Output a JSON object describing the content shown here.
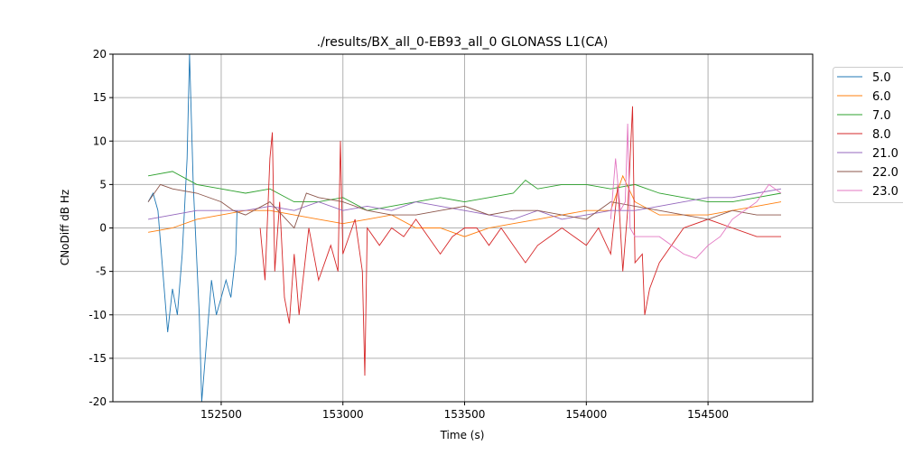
{
  "chart_data": {
    "type": "line",
    "title": "./results/BX_all_0-EB93_all_0 GLONASS L1(CA)",
    "xlabel": "Time (s)",
    "ylabel": "CNoDiff dB Hz",
    "xlim": [
      152055,
      154930
    ],
    "ylim": [
      -20,
      20
    ],
    "xticks": [
      152500,
      153000,
      153500,
      154000,
      154500
    ],
    "yticks": [
      -20,
      -15,
      -10,
      -5,
      0,
      5,
      10,
      15,
      20
    ],
    "grid": true,
    "legend_position": "outside-right-top",
    "series": [
      {
        "name": "5.0",
        "color": "#1f77b4",
        "points": [
          [
            152200,
            3
          ],
          [
            152220,
            4
          ],
          [
            152240,
            2
          ],
          [
            152260,
            -5
          ],
          [
            152280,
            -12
          ],
          [
            152300,
            -7
          ],
          [
            152320,
            -10
          ],
          [
            152340,
            -3
          ],
          [
            152360,
            8
          ],
          [
            152370,
            20
          ],
          [
            152385,
            5
          ],
          [
            152410,
            -10
          ],
          [
            152420,
            -20
          ],
          [
            152440,
            -13
          ],
          [
            152460,
            -6
          ],
          [
            152480,
            -10
          ],
          [
            152500,
            -8
          ],
          [
            152520,
            -6
          ],
          [
            152540,
            -8
          ],
          [
            152560,
            -3
          ],
          [
            152565,
            2
          ]
        ]
      },
      {
        "name": "6.0",
        "color": "#ff7f0e",
        "points": [
          [
            152200,
            -0.5
          ],
          [
            152300,
            0
          ],
          [
            152400,
            1
          ],
          [
            152500,
            1.5
          ],
          [
            152600,
            2
          ],
          [
            152700,
            2
          ],
          [
            152800,
            1.5
          ],
          [
            152900,
            1
          ],
          [
            153000,
            0.5
          ],
          [
            153100,
            1
          ],
          [
            153200,
            1.5
          ],
          [
            153300,
            0
          ],
          [
            153400,
            0
          ],
          [
            153500,
            -1
          ],
          [
            153600,
            0
          ],
          [
            153700,
            0.5
          ],
          [
            153800,
            1
          ],
          [
            153900,
            1.5
          ],
          [
            154000,
            2
          ],
          [
            154100,
            2
          ],
          [
            154150,
            6
          ],
          [
            154200,
            3
          ],
          [
            154300,
            1.5
          ],
          [
            154400,
            1.5
          ],
          [
            154500,
            1.5
          ],
          [
            154600,
            2
          ],
          [
            154700,
            2.5
          ],
          [
            154800,
            3
          ]
        ]
      },
      {
        "name": "7.0",
        "color": "#2ca02c",
        "points": [
          [
            152200,
            6
          ],
          [
            152300,
            6.5
          ],
          [
            152400,
            5
          ],
          [
            152500,
            4.5
          ],
          [
            152600,
            4
          ],
          [
            152700,
            4.5
          ],
          [
            152800,
            3
          ],
          [
            152900,
            3
          ],
          [
            153000,
            3.5
          ],
          [
            153100,
            2
          ],
          [
            153200,
            2.5
          ],
          [
            153300,
            3
          ],
          [
            153400,
            3.5
          ],
          [
            153500,
            3
          ],
          [
            153600,
            3.5
          ],
          [
            153700,
            4
          ],
          [
            153750,
            5.5
          ],
          [
            153800,
            4.5
          ],
          [
            153900,
            5
          ],
          [
            154000,
            5
          ],
          [
            154100,
            4.5
          ],
          [
            154200,
            5
          ],
          [
            154300,
            4
          ],
          [
            154400,
            3.5
          ],
          [
            154500,
            3
          ],
          [
            154600,
            3
          ],
          [
            154700,
            3.5
          ],
          [
            154800,
            4
          ]
        ]
      },
      {
        "name": "8.0",
        "color": "#d62728",
        "points": [
          [
            152660,
            0
          ],
          [
            152680,
            -6
          ],
          [
            152700,
            8
          ],
          [
            152710,
            11
          ],
          [
            152720,
            -5
          ],
          [
            152740,
            3
          ],
          [
            152760,
            -8
          ],
          [
            152780,
            -11
          ],
          [
            152800,
            -3
          ],
          [
            152820,
            -10
          ],
          [
            152840,
            -5
          ],
          [
            152860,
            0
          ],
          [
            152900,
            -6
          ],
          [
            152950,
            -2
          ],
          [
            152980,
            -5
          ],
          [
            152990,
            10
          ],
          [
            153000,
            -3
          ],
          [
            153050,
            1
          ],
          [
            153080,
            -5
          ],
          [
            153090,
            -17
          ],
          [
            153100,
            0
          ],
          [
            153150,
            -2
          ],
          [
            153200,
            0
          ],
          [
            153250,
            -1
          ],
          [
            153300,
            1
          ],
          [
            153350,
            -1
          ],
          [
            153400,
            -3
          ],
          [
            153450,
            -1
          ],
          [
            153500,
            0
          ],
          [
            153550,
            0
          ],
          [
            153600,
            -2
          ],
          [
            153650,
            0
          ],
          [
            153700,
            -2
          ],
          [
            153750,
            -4
          ],
          [
            153800,
            -2
          ],
          [
            153850,
            -1
          ],
          [
            153900,
            0
          ],
          [
            153950,
            -1
          ],
          [
            154000,
            -2
          ],
          [
            154050,
            0
          ],
          [
            154100,
            -3
          ],
          [
            154130,
            5
          ],
          [
            154150,
            -5
          ],
          [
            154170,
            2
          ],
          [
            154190,
            14
          ],
          [
            154200,
            -4
          ],
          [
            154230,
            -3
          ],
          [
            154240,
            -10
          ],
          [
            154260,
            -7
          ],
          [
            154300,
            -4
          ],
          [
            154400,
            0
          ],
          [
            154500,
            1
          ],
          [
            154600,
            0
          ],
          [
            154700,
            -1
          ],
          [
            154800,
            -1
          ]
        ]
      },
      {
        "name": "21.0",
        "color": "#9467bd",
        "points": [
          [
            152200,
            1
          ],
          [
            152300,
            1.5
          ],
          [
            152400,
            2
          ],
          [
            152500,
            2
          ],
          [
            152600,
            2
          ],
          [
            152700,
            2.5
          ],
          [
            152800,
            2
          ],
          [
            152900,
            3
          ],
          [
            153000,
            2
          ],
          [
            153100,
            2.5
          ],
          [
            153200,
            2
          ],
          [
            153300,
            3
          ],
          [
            153400,
            2.5
          ],
          [
            153500,
            2
          ],
          [
            153600,
            1.5
          ],
          [
            153700,
            1
          ],
          [
            153800,
            2
          ],
          [
            153900,
            1
          ],
          [
            154000,
            1.5
          ],
          [
            154100,
            2
          ],
          [
            154200,
            2
          ],
          [
            154300,
            2.5
          ],
          [
            154400,
            3
          ],
          [
            154500,
            3.5
          ],
          [
            154600,
            3.5
          ],
          [
            154700,
            4
          ],
          [
            154800,
            4.5
          ]
        ]
      },
      {
        "name": "22.0",
        "color": "#8c564b",
        "points": [
          [
            152200,
            3
          ],
          [
            152250,
            5
          ],
          [
            152300,
            4.5
          ],
          [
            152400,
            4
          ],
          [
            152500,
            3
          ],
          [
            152550,
            2
          ],
          [
            152600,
            1.5
          ],
          [
            152700,
            3
          ],
          [
            152800,
            0
          ],
          [
            152850,
            4
          ],
          [
            152900,
            3.5
          ],
          [
            153000,
            3
          ],
          [
            153100,
            2
          ],
          [
            153200,
            1.5
          ],
          [
            153300,
            1.5
          ],
          [
            153400,
            2
          ],
          [
            153500,
            2.5
          ],
          [
            153600,
            1.5
          ],
          [
            153700,
            2
          ],
          [
            153800,
            2
          ],
          [
            153900,
            1.5
          ],
          [
            154000,
            1
          ],
          [
            154100,
            3
          ],
          [
            154200,
            2.5
          ],
          [
            154300,
            2
          ],
          [
            154400,
            1.5
          ],
          [
            154500,
            1
          ],
          [
            154600,
            2
          ],
          [
            154700,
            1.5
          ],
          [
            154800,
            1.5
          ]
        ]
      },
      {
        "name": "23.0",
        "color": "#e377c2",
        "points": [
          [
            154100,
            1
          ],
          [
            154120,
            8
          ],
          [
            154140,
            2
          ],
          [
            154160,
            3
          ],
          [
            154170,
            12
          ],
          [
            154180,
            0
          ],
          [
            154200,
            -1
          ],
          [
            154250,
            -1
          ],
          [
            154300,
            -1
          ],
          [
            154350,
            -2
          ],
          [
            154400,
            -3
          ],
          [
            154450,
            -3.5
          ],
          [
            154500,
            -2
          ],
          [
            154550,
            -1
          ],
          [
            154600,
            1
          ],
          [
            154650,
            2
          ],
          [
            154700,
            3
          ],
          [
            154750,
            5
          ],
          [
            154800,
            4
          ]
        ]
      }
    ]
  }
}
